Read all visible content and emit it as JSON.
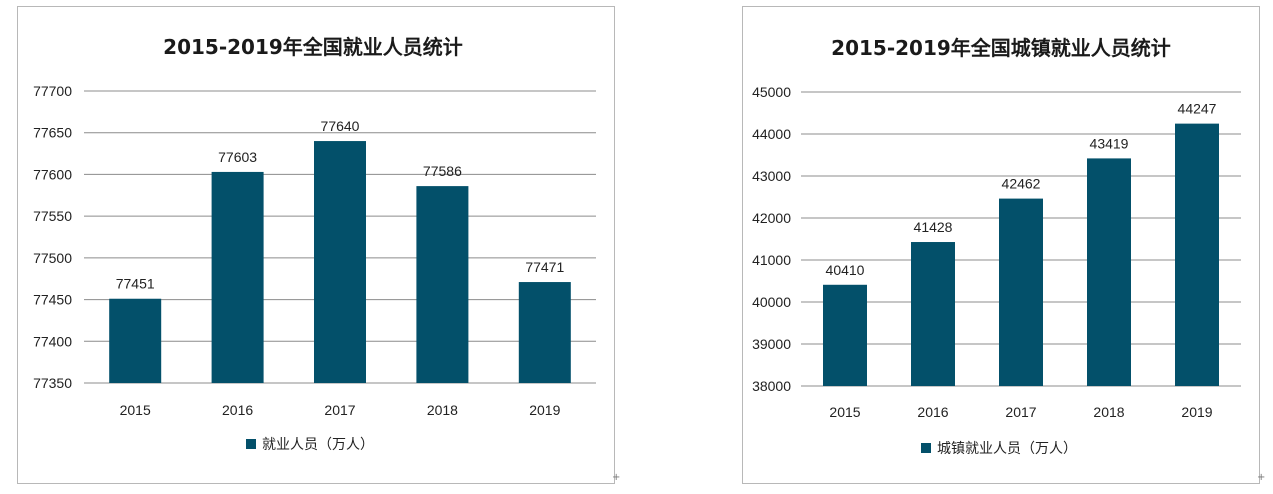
{
  "colors": {
    "bar": "#03506a"
  },
  "chart_data": [
    {
      "type": "bar",
      "title": "2015-2019年全国就业人员统计",
      "categories": [
        "2015",
        "2016",
        "2017",
        "2018",
        "2019"
      ],
      "series": [
        {
          "name": "就业人员（万人）",
          "values": [
            77451,
            77603,
            77640,
            77586,
            77471
          ]
        }
      ],
      "data_labels": [
        "77451",
        "77603",
        "77640",
        "77586",
        "77471"
      ],
      "y_ticks": [
        "77350",
        "77400",
        "77450",
        "77500",
        "77550",
        "77600",
        "77650",
        "77700"
      ],
      "ylim": [
        77350,
        77700
      ],
      "grid": true,
      "legend_position": "bottom"
    },
    {
      "type": "bar",
      "title": "2015-2019年全国城镇就业人员统计",
      "categories": [
        "2015",
        "2016",
        "2017",
        "2018",
        "2019"
      ],
      "series": [
        {
          "name": "城镇就业人员（万人）",
          "values": [
            40410,
            41428,
            42462,
            43419,
            44247
          ]
        }
      ],
      "data_labels": [
        "40410",
        "41428",
        "42462",
        "43419",
        "44247"
      ],
      "y_ticks": [
        "38000",
        "39000",
        "40000",
        "41000",
        "42000",
        "43000",
        "44000",
        "45000"
      ],
      "ylim": [
        38000,
        45000
      ],
      "grid": true,
      "legend_position": "bottom"
    }
  ]
}
